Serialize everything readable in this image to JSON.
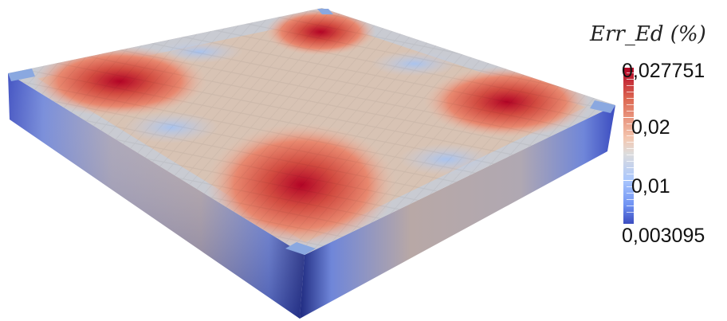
{
  "legend": {
    "title": "Err_Ed (%)",
    "max_label": "0,027751",
    "min_label": "0,003095",
    "ticks": [
      {
        "label": "0,02",
        "value": 0.02
      },
      {
        "label": "0,01",
        "value": 0.01
      }
    ],
    "range": [
      0.003095,
      0.027751
    ]
  },
  "colors": {
    "high": "#b40426",
    "mid": "#dddcdc",
    "low": "#3b4cc0",
    "plate_base": "#d8c3b4"
  },
  "heatmap": {
    "hotspots": [
      "top-corner",
      "right-corner",
      "front-corner",
      "left-corner"
    ]
  }
}
